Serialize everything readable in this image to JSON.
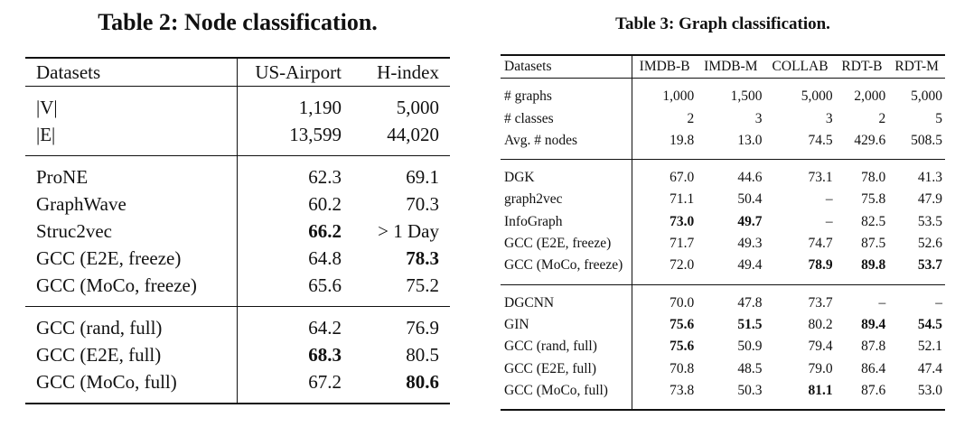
{
  "table2": {
    "title": "Table 2: Node classification.",
    "header": [
      "Datasets",
      "US-Airport",
      "H-index"
    ],
    "groups": [
      [
        {
          "name": "|V|",
          "values": [
            "1,190",
            "5,000"
          ],
          "bold": [
            false,
            false
          ]
        },
        {
          "name": "|E|",
          "values": [
            "13,599",
            "44,020"
          ],
          "bold": [
            false,
            false
          ]
        }
      ],
      [
        {
          "name": "ProNE",
          "values": [
            "62.3",
            "69.1"
          ],
          "bold": [
            false,
            false
          ]
        },
        {
          "name": "GraphWave",
          "values": [
            "60.2",
            "70.3"
          ],
          "bold": [
            false,
            false
          ]
        },
        {
          "name": "Struc2vec",
          "values": [
            "66.2",
            "> 1 Day"
          ],
          "bold": [
            true,
            false
          ]
        },
        {
          "name": "GCC (E2E, freeze)",
          "values": [
            "64.8",
            "78.3"
          ],
          "bold": [
            false,
            true
          ]
        },
        {
          "name": "GCC (MoCo, freeze)",
          "values": [
            "65.6",
            "75.2"
          ],
          "bold": [
            false,
            false
          ]
        }
      ],
      [
        {
          "name": "GCC (rand, full)",
          "values": [
            "64.2",
            "76.9"
          ],
          "bold": [
            false,
            false
          ]
        },
        {
          "name": "GCC (E2E, full)",
          "values": [
            "68.3",
            "80.5"
          ],
          "bold": [
            true,
            false
          ]
        },
        {
          "name": "GCC (MoCo, full)",
          "values": [
            "67.2",
            "80.6"
          ],
          "bold": [
            false,
            true
          ]
        }
      ]
    ]
  },
  "table3": {
    "title": "Table 3: Graph classification.",
    "header": [
      "Datasets",
      "IMDB-B",
      "IMDB-M",
      "COLLAB",
      "RDT-B",
      "RDT-M"
    ],
    "groups": [
      [
        {
          "name": "# graphs",
          "values": [
            "1,000",
            "1,500",
            "5,000",
            "2,000",
            "5,000"
          ],
          "bold": [
            false,
            false,
            false,
            false,
            false
          ]
        },
        {
          "name": "# classes",
          "values": [
            "2",
            "3",
            "3",
            "2",
            "5"
          ],
          "bold": [
            false,
            false,
            false,
            false,
            false
          ]
        },
        {
          "name": "Avg. # nodes",
          "values": [
            "19.8",
            "13.0",
            "74.5",
            "429.6",
            "508.5"
          ],
          "bold": [
            false,
            false,
            false,
            false,
            false
          ]
        }
      ],
      [
        {
          "name": "DGK",
          "values": [
            "67.0",
            "44.6",
            "73.1",
            "78.0",
            "41.3"
          ],
          "bold": [
            false,
            false,
            false,
            false,
            false
          ]
        },
        {
          "name": "graph2vec",
          "values": [
            "71.1",
            "50.4",
            "–",
            "75.8",
            "47.9"
          ],
          "bold": [
            false,
            false,
            false,
            false,
            false
          ]
        },
        {
          "name": "InfoGraph",
          "values": [
            "73.0",
            "49.7",
            "–",
            "82.5",
            "53.5"
          ],
          "bold": [
            true,
            true,
            false,
            false,
            false
          ]
        },
        {
          "name": "GCC (E2E, freeze)",
          "values": [
            "71.7",
            "49.3",
            "74.7",
            "87.5",
            "52.6"
          ],
          "bold": [
            false,
            false,
            false,
            false,
            false
          ]
        },
        {
          "name": "GCC (MoCo, freeze)",
          "values": [
            "72.0",
            "49.4",
            "78.9",
            "89.8",
            "53.7"
          ],
          "bold": [
            false,
            false,
            true,
            true,
            true
          ]
        }
      ],
      [
        {
          "name": "DGCNN",
          "values": [
            "70.0",
            "47.8",
            "73.7",
            "–",
            "–"
          ],
          "bold": [
            false,
            false,
            false,
            false,
            false
          ]
        },
        {
          "name": "GIN",
          "values": [
            "75.6",
            "51.5",
            "80.2",
            "89.4",
            "54.5"
          ],
          "bold": [
            true,
            true,
            false,
            true,
            true
          ]
        },
        {
          "name": "GCC (rand, full)",
          "values": [
            "75.6",
            "50.9",
            "79.4",
            "87.8",
            "52.1"
          ],
          "bold": [
            true,
            false,
            false,
            false,
            false
          ]
        },
        {
          "name": "GCC (E2E, full)",
          "values": [
            "70.8",
            "48.5",
            "79.0",
            "86.4",
            "47.4"
          ],
          "bold": [
            false,
            false,
            false,
            false,
            false
          ]
        },
        {
          "name": "GCC (MoCo, full)",
          "values": [
            "73.8",
            "50.3",
            "81.1",
            "87.6",
            "53.0"
          ],
          "bold": [
            false,
            false,
            true,
            false,
            false
          ]
        }
      ]
    ]
  }
}
